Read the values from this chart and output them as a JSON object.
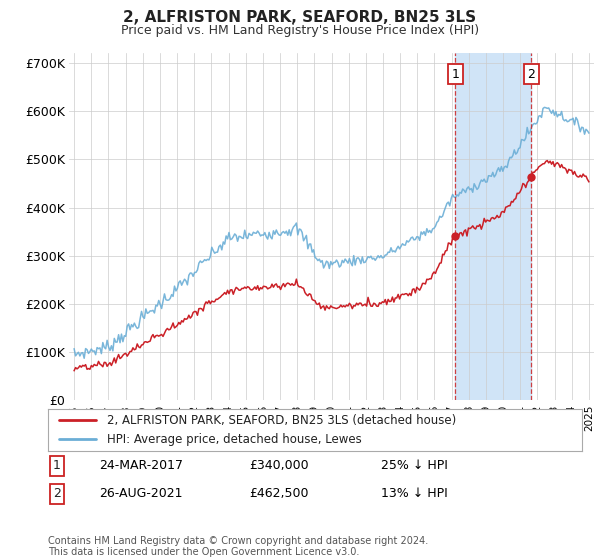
{
  "title": "2, ALFRISTON PARK, SEAFORD, BN25 3LS",
  "subtitle": "Price paid vs. HM Land Registry's House Price Index (HPI)",
  "ylim": [
    0,
    720000
  ],
  "yticks": [
    0,
    100000,
    200000,
    300000,
    400000,
    500000,
    600000,
    700000
  ],
  "ytick_labels": [
    "£0",
    "£100K",
    "£200K",
    "£300K",
    "£400K",
    "£500K",
    "£600K",
    "£700K"
  ],
  "background_color": "#ffffff",
  "plot_bg_color": "#ffffff",
  "hpi_color": "#6baed6",
  "price_color": "#cb2027",
  "marker_color": "#cb2027",
  "sale1_year": 2017.22,
  "sale1_price": 340000,
  "sale1_date": "24-MAR-2017",
  "sale1_pct": "25% ↓ HPI",
  "sale2_year": 2021.65,
  "sale2_price": 462500,
  "sale2_date": "26-AUG-2021",
  "sale2_pct": "13% ↓ HPI",
  "legend_label1": "2, ALFRISTON PARK, SEAFORD, BN25 3LS (detached house)",
  "legend_label2": "HPI: Average price, detached house, Lewes",
  "footnote": "Contains HM Land Registry data © Crown copyright and database right 2024.\nThis data is licensed under the Open Government Licence v3.0.",
  "shade_color": "#d0e4f7",
  "grid_color": "#cccccc",
  "xlim_start": 1994.7,
  "xlim_end": 2025.3
}
